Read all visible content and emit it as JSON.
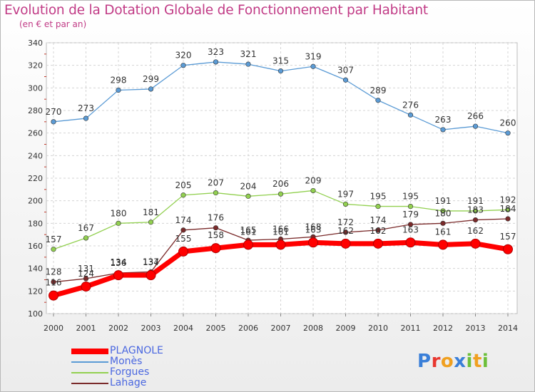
{
  "chart_data": {
    "type": "line",
    "title": "Evolution de la Dotation Globale de Fonctionnement par Habitant",
    "subtitle": "(en € et par an)",
    "xlabel": "",
    "ylabel": "",
    "categories": [
      "2000",
      "2001",
      "2002",
      "2003",
      "2004",
      "2005",
      "2006",
      "2007",
      "2008",
      "2009",
      "2010",
      "2011",
      "2012",
      "2013",
      "2014"
    ],
    "ylim": [
      100,
      340
    ],
    "yticks": [
      100,
      120,
      140,
      160,
      180,
      200,
      220,
      240,
      260,
      280,
      300,
      320,
      340
    ],
    "grid": true,
    "legend_position": "bottom-left",
    "series": [
      {
        "name": "PLAGNOLE",
        "color": "#ff0000",
        "values": [
          116,
          124,
          134,
          134,
          155,
          158,
          161,
          161,
          163,
          162,
          162,
          163,
          161,
          162,
          157
        ]
      },
      {
        "name": "Monès",
        "color": "#5b9bd5",
        "values": [
          270,
          273,
          298,
          299,
          320,
          323,
          321,
          315,
          319,
          307,
          289,
          276,
          263,
          266,
          260
        ]
      },
      {
        "name": "Forgues",
        "color": "#92d050",
        "values": [
          157,
          167,
          180,
          181,
          205,
          207,
          204,
          206,
          209,
          197,
          195,
          195,
          191,
          191,
          192
        ]
      },
      {
        "name": "Lahage",
        "color": "#7a2a2a",
        "values": [
          128,
          131,
          136,
          137,
          174,
          176,
          165,
          166,
          168,
          172,
          174,
          179,
          180,
          183,
          184
        ]
      }
    ]
  },
  "brand": {
    "letters": [
      "P",
      "r",
      "o",
      "x",
      "i",
      "t",
      "i"
    ],
    "colors": [
      "#3a7fd8",
      "#e8372f",
      "#f0a020",
      "#3a7fd8",
      "#6cbf3a",
      "#f0a020",
      "#6cbf3a"
    ]
  }
}
